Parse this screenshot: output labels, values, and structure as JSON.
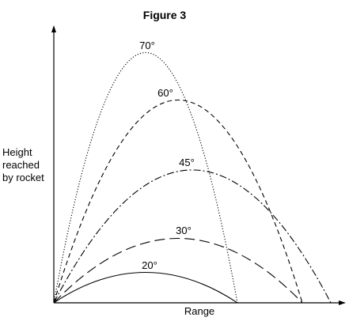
{
  "figure": {
    "title": "Figure 3",
    "ylabel_lines": [
      "Height",
      "reached",
      "by rocket"
    ],
    "xlabel": "Range"
  },
  "trajectories": [
    {
      "label": "70°",
      "style": "dotted"
    },
    {
      "label": "60°",
      "style": "short-dash"
    },
    {
      "label": "45°",
      "style": "dash-dot"
    },
    {
      "label": "30°",
      "style": "long-dash"
    },
    {
      "label": "20°",
      "style": "solid"
    }
  ]
}
